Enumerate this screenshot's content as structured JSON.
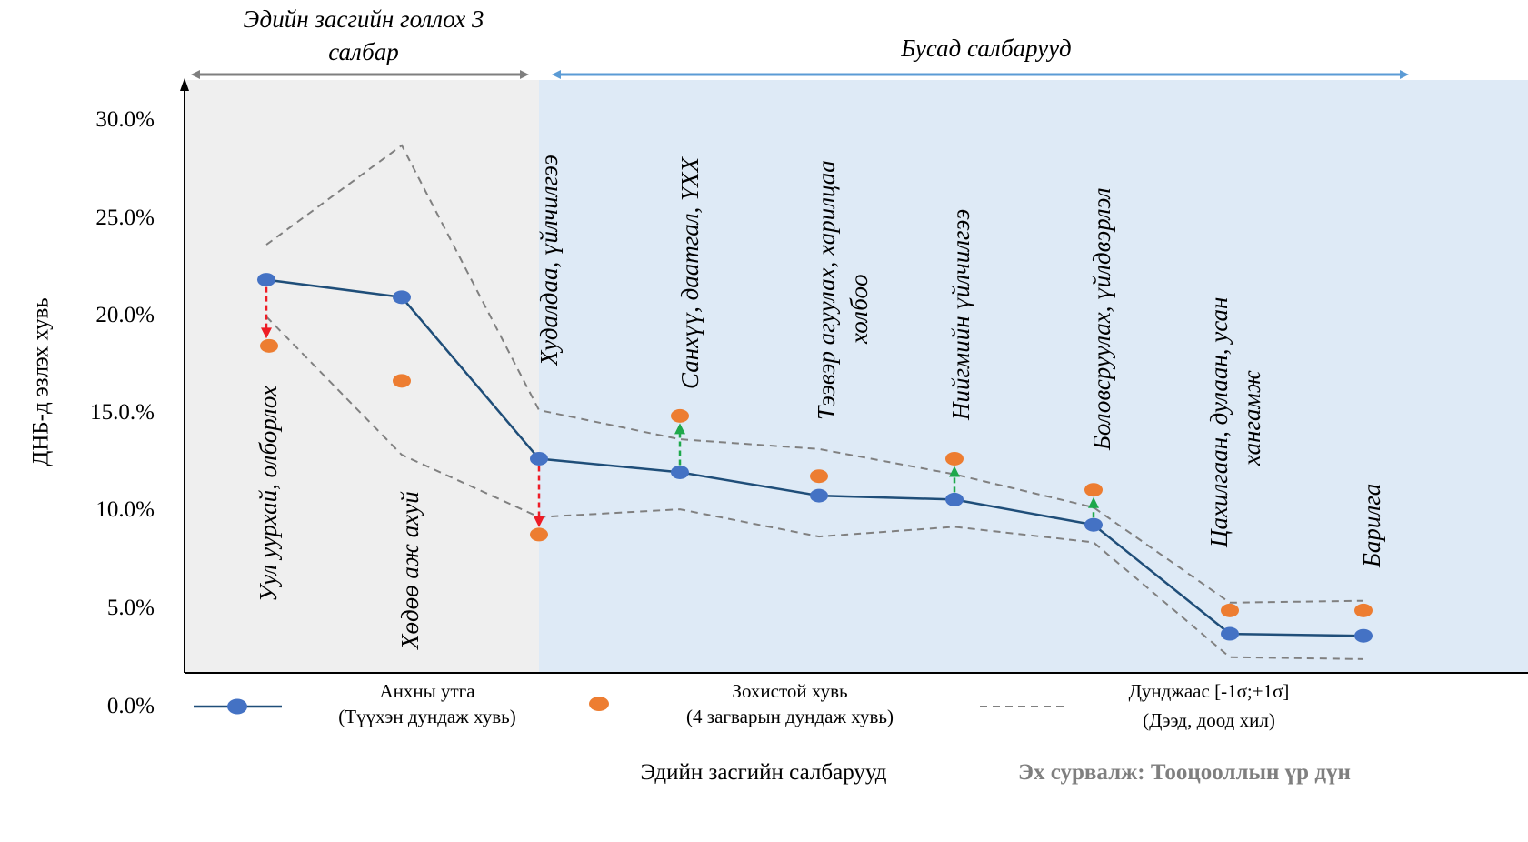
{
  "chart_data": {
    "type": "line",
    "ylabel": "ДНБ-д эзлэх хувь",
    "xlabel": "Эдийн засгийн салбарууд",
    "ylim": [
      0,
      30
    ],
    "yticks": [
      "0.0%",
      "5.0%",
      "10.0%",
      "15.0.%",
      "20.0%",
      "25.0%",
      "30.0%"
    ],
    "grid": false,
    "categories": [
      [
        "Уул уурхай, олборлох"
      ],
      [
        "Хөдөө аж ахуй"
      ],
      [
        "Худалдаа, үйлчилгээ"
      ],
      [
        "Санхүү, даатгал, ҮХХ"
      ],
      [
        "Тээвэр агуулах, харилцаа",
        "холбоо"
      ],
      [
        "Нийгмийн үйлчилгээ"
      ],
      [
        "Боловсруулах, үйлдвэрлэл"
      ],
      [
        "Цахилгаан, дулаан, усан",
        "хангамж"
      ],
      [
        "Барилга"
      ]
    ],
    "series": [
      {
        "name": "Анхны утга (Түүхэн дундаж хувь)",
        "values": [
          20.3,
          19.4,
          11.1,
          10.4,
          9.2,
          9.0,
          7.7,
          2.1,
          2.0
        ]
      },
      {
        "name": "Зохистой хувь (4 загварын дундаж хувь)",
        "values": [
          16.9,
          15.1,
          7.2,
          13.3,
          10.2,
          11.1,
          9.5,
          3.3,
          3.3
        ]
      },
      {
        "name": "upper",
        "values": [
          22.1,
          27.2,
          13.6,
          12.1,
          11.6,
          10.3,
          8.6,
          3.7,
          3.8
        ]
      },
      {
        "name": "lower",
        "values": [
          18.4,
          11.3,
          8.1,
          8.5,
          7.1,
          7.6,
          6.8,
          0.9,
          0.8
        ]
      }
    ],
    "arrow_colors": [
      "#ee1c25",
      "#ee1c25",
      "#ee1c25",
      "#1ea84b",
      "#1ea84b",
      "#1ea84b",
      "#1ea84b",
      "#1ea84b",
      "#1ea84b"
    ],
    "arrows": [
      {
        "index": 0,
        "direction": "down"
      },
      {
        "index": 2,
        "direction": "down"
      },
      {
        "index": 3,
        "direction": "up"
      },
      {
        "index": 5,
        "direction": "up"
      },
      {
        "index": 6,
        "direction": "up"
      }
    ],
    "regions": [
      {
        "label": [
          "Эдийн засгийн голлох 3",
          "салбар"
        ],
        "color": "#efefef",
        "arrow_color": "#7f7f7f"
      },
      {
        "label": [
          "Бусад салбарууд"
        ],
        "color": "#deeaf6",
        "arrow_color": "#5b9bd5"
      }
    ],
    "legend": {
      "placement": "bottom",
      "items": [
        {
          "line1": "Анхны утга",
          "line2": "(Түүхэн дундаж хувь)"
        },
        {
          "line1": "Зохистой хувь",
          "line2": "(4 загварын дундаж хувь)"
        },
        {
          "line1": "Дунджаас [-1σ;+1σ]",
          "line2": "(Дээд, доод хил)"
        }
      ]
    },
    "source": "Эх сурвалж: Тооцооллын үр дүн",
    "colors": {
      "actual": "#1f4e79",
      "actual_marker": "#4472c4",
      "optimal_marker": "#ed7d31",
      "band": "#808080",
      "down_arrow": "#ee1c25",
      "up_arrow": "#1ea84b",
      "axis": "#000000",
      "source_text": "#7f7f7f"
    }
  }
}
